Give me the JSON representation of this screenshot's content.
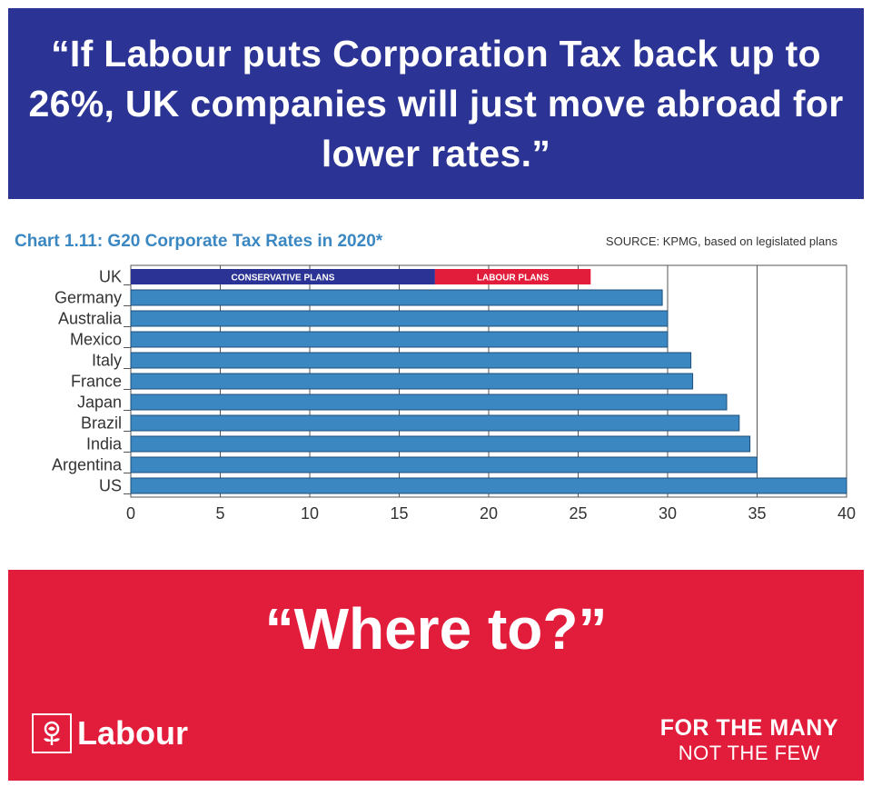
{
  "headline": {
    "quote": "“If Labour puts Corporation Tax back up to 26%, UK companies will just move abroad for lower rates.”"
  },
  "chart_header": {
    "title": "Chart 1.11: G20 Corporate Tax Rates in 2020*",
    "source": "SOURCE: KPMG, based on legislated plans"
  },
  "chart_data": {
    "type": "bar",
    "orientation": "horizontal",
    "title": "Chart 1.11: G20 Corporate Tax Rates in 2020*",
    "categories": [
      "UK",
      "Germany",
      "Australia",
      "Mexico",
      "Italy",
      "France",
      "Japan",
      "Brazil",
      "India",
      "Argentina",
      "US"
    ],
    "values": [
      17,
      29.7,
      30,
      30,
      31.3,
      31.4,
      33.3,
      34,
      34.6,
      35,
      40
    ],
    "uk_segments": [
      {
        "label": "CONSERVATIVE PLANS",
        "from": 0,
        "to": 17,
        "color": "#2b3494"
      },
      {
        "label": "LABOUR PLANS",
        "from": 17,
        "to": 25.7,
        "color": "#e21c3b"
      }
    ],
    "bar_color": "#3b87c2",
    "xlim": [
      0,
      40
    ],
    "x_ticks": [
      "0",
      "5",
      "10",
      "15",
      "20",
      "25",
      "30",
      "35",
      "40"
    ],
    "grid": true,
    "legend": "none"
  },
  "closing": {
    "quote": "“Where to?”"
  },
  "logo": {
    "wordmark": "Labour"
  },
  "slogan": {
    "line1": "FOR THE MANY",
    "line2": "NOT THE FEW"
  },
  "colors": {
    "brand_blue": "#2b3494",
    "brand_red": "#e21c3b",
    "bar_blue": "#3b87c2"
  }
}
